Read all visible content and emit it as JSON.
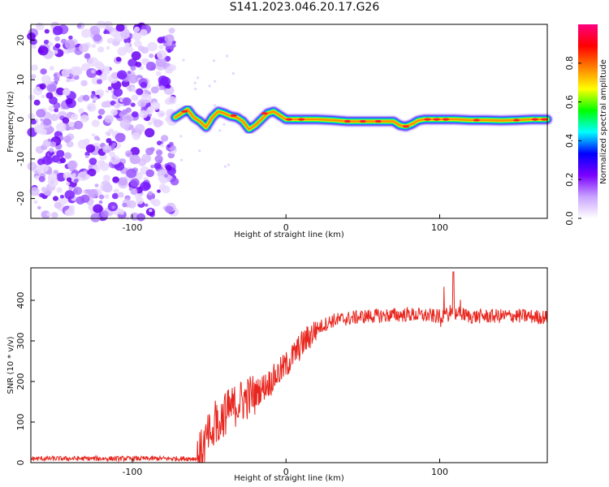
{
  "title": "S141.2023.046.20.17.G26",
  "chart_data": [
    {
      "type": "heatmap",
      "title": "S141.2023.046.20.17.G26",
      "xlabel": "Height of straight line (km)",
      "ylabel": "Frequency (Hz)",
      "xlim": [
        -166,
        170
      ],
      "ylim": [
        -25,
        24
      ],
      "x_ticks": [
        -100,
        0,
        100
      ],
      "y_ticks": [
        -20,
        -10,
        0,
        10,
        20
      ],
      "noise_region_x": [
        -166,
        -72
      ],
      "signal_ridge": {
        "x": [
          -72,
          -68,
          -64,
          -60,
          -56,
          -52,
          -48,
          -44,
          -40,
          -36,
          -32,
          -28,
          -24,
          -20,
          -16,
          -12,
          -8,
          -4,
          0,
          10,
          20,
          30,
          40,
          50,
          60,
          70,
          74,
          78,
          82,
          86,
          90,
          100,
          110,
          120,
          130,
          140,
          150,
          160,
          170
        ],
        "freq": [
          0.5,
          1.5,
          2.5,
          0.5,
          -0.5,
          -2.0,
          0.5,
          2.0,
          1.5,
          0.8,
          0.5,
          -0.5,
          -2.5,
          -1.5,
          0.0,
          1.5,
          2.0,
          1.0,
          0.0,
          0.0,
          0.0,
          -0.2,
          -0.5,
          -0.5,
          -0.5,
          -0.5,
          -1.5,
          -1.8,
          -1.2,
          -0.3,
          0.0,
          0.0,
          0.0,
          -0.2,
          -0.2,
          -0.3,
          -0.2,
          0.0,
          0.0
        ]
      },
      "colorbar": {
        "label": "Normalized spectral amplitude",
        "ticks": [
          "0.0",
          "0.2",
          "0.4",
          "0.6",
          "0.8"
        ],
        "range": [
          0,
          1
        ],
        "colormap": [
          "#ffffff",
          "#c9a3ff",
          "#7a00ff",
          "#0000ff",
          "#00ffff",
          "#00ff00",
          "#ffff00",
          "#ff8000",
          "#ff0000",
          "#ff0080"
        ]
      },
      "grid": false
    },
    {
      "type": "line",
      "xlabel": "Height of straight line (km)",
      "ylabel": "SNR (10 * v/v)",
      "xlim": [
        -166,
        170
      ],
      "ylim": [
        0,
        480
      ],
      "x_ticks": [
        -100,
        0,
        100
      ],
      "y_ticks": [
        0,
        100,
        200,
        300,
        400
      ],
      "color": "#e8261e",
      "trend": {
        "x": [
          -166,
          -110,
          -58,
          -55,
          -50,
          -45,
          -40,
          -30,
          -20,
          -10,
          0,
          10,
          20,
          30,
          50,
          80,
          100,
          110,
          120,
          150,
          170
        ],
        "y": [
          10,
          10,
          10,
          30,
          70,
          100,
          120,
          150,
          170,
          200,
          240,
          290,
          330,
          350,
          360,
          365,
          360,
          370,
          360,
          362,
          358
        ]
      },
      "grid": false
    }
  ]
}
